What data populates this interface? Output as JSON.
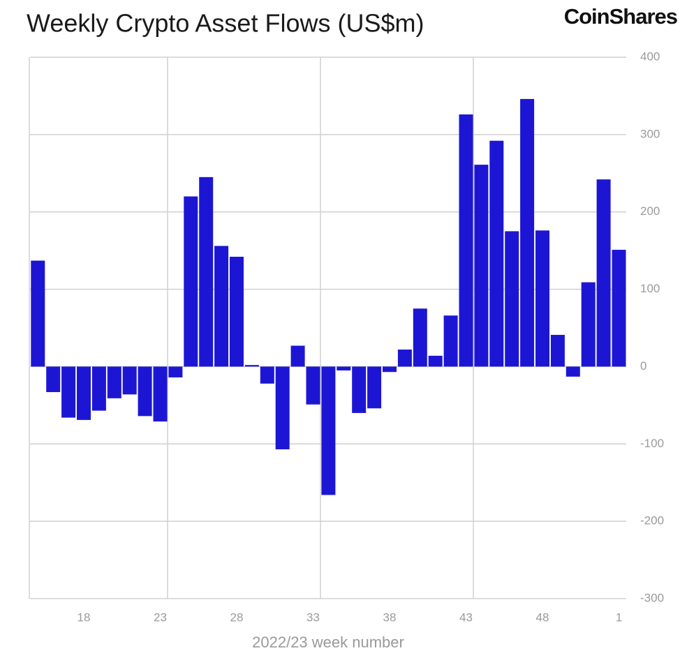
{
  "chart_data": {
    "type": "bar",
    "title": "Weekly Crypto Asset Flows (US$m)",
    "logo": "CoinShares",
    "x_label": "2022/23 week number",
    "categories": [
      null,
      null,
      null,
      "18",
      null,
      null,
      null,
      null,
      "23",
      null,
      null,
      null,
      null,
      "28",
      null,
      null,
      null,
      null,
      "33",
      null,
      null,
      null,
      null,
      "38",
      null,
      null,
      null,
      null,
      "43",
      null,
      null,
      null,
      null,
      "48",
      null,
      null,
      null,
      null,
      "1"
    ],
    "values": [
      137,
      -33,
      -66,
      -69,
      -57,
      -41,
      -36,
      -64,
      -71,
      -14,
      220,
      245,
      156,
      142,
      2,
      -22,
      -107,
      27,
      -49,
      -166,
      -5,
      -60,
      -54,
      -7,
      22,
      75,
      14,
      66,
      326,
      261,
      292,
      175,
      346,
      176,
      41,
      -13,
      109,
      242,
      151
    ],
    "color": "#1c16d4",
    "ylim": [
      -300,
      400
    ],
    "yticks": [
      -300,
      -200,
      -100,
      0,
      100,
      200,
      300,
      400
    ],
    "grid": true,
    "y_axis_side": "right"
  }
}
